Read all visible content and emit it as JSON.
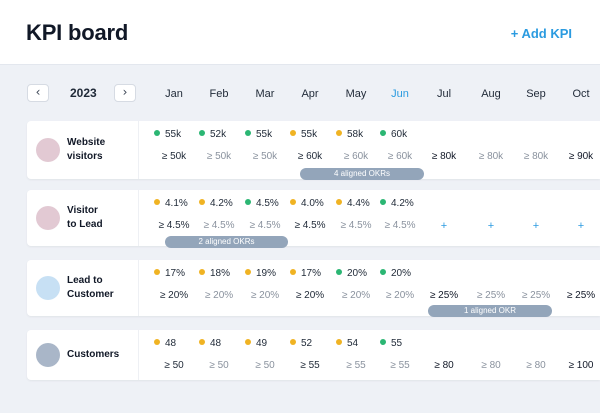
{
  "header": {
    "title": "KPI board",
    "add_label": "+ Add KPI"
  },
  "calendar": {
    "year": "2023",
    "prev_icon": "chevron-left-icon",
    "next_icon": "chevron-right-icon",
    "prev_glyph": "‹",
    "next_glyph": "›",
    "months": [
      "Jan",
      "Feb",
      "Mar",
      "Apr",
      "May",
      "Jun",
      "Jul",
      "Aug",
      "Sep",
      "Oct"
    ],
    "current_month": "Jun"
  },
  "colors": {
    "green": "#2bb673",
    "amber": "#f0b323",
    "accent": "#2b9be0"
  },
  "kpis": [
    {
      "name_line1": "Website",
      "name_line2": "visitors",
      "avatar_color": "#e2c9d3",
      "actuals": [
        {
          "value": "55k",
          "status": "green"
        },
        {
          "value": "52k",
          "status": "green"
        },
        {
          "value": "55k",
          "status": "green"
        },
        {
          "value": "55k",
          "status": "amber"
        },
        {
          "value": "58k",
          "status": "amber"
        },
        {
          "value": "60k",
          "status": "green"
        }
      ],
      "targets": [
        "≥ 50k",
        "≥ 50k",
        "≥ 50k",
        "≥ 60k",
        "≥ 60k",
        "≥ 60k",
        "≥ 80k",
        "≥ 80k",
        "≥ 80k",
        "≥ 90k"
      ],
      "okr_label": "4 aligned OKRs"
    },
    {
      "name_line1": "Visitor",
      "name_line2": "to Lead",
      "avatar_color": "#e2c9d3",
      "actuals": [
        {
          "value": "4.1%",
          "status": "amber"
        },
        {
          "value": "4.2%",
          "status": "amber"
        },
        {
          "value": "4.5%",
          "status": "green"
        },
        {
          "value": "4.0%",
          "status": "amber"
        },
        {
          "value": "4.4%",
          "status": "amber"
        },
        {
          "value": "4.2%",
          "status": "green"
        }
      ],
      "targets": [
        "≥ 4.5%",
        "≥ 4.5%",
        "≥ 4.5%",
        "≥ 4.5%",
        "≥ 4.5%",
        "≥ 4.5%"
      ],
      "plus_glyph": "+",
      "okr_label": "2 aligned OKRs"
    },
    {
      "name_line1": "Lead to",
      "name_line2": "Customer",
      "avatar_color": "#c7e0f4",
      "actuals": [
        {
          "value": "17%",
          "status": "amber"
        },
        {
          "value": "18%",
          "status": "amber"
        },
        {
          "value": "19%",
          "status": "amber"
        },
        {
          "value": "17%",
          "status": "amber"
        },
        {
          "value": "20%",
          "status": "green"
        },
        {
          "value": "20%",
          "status": "green"
        }
      ],
      "targets": [
        "≥ 20%",
        "≥ 20%",
        "≥ 20%",
        "≥ 20%",
        "≥ 20%",
        "≥ 20%",
        "≥ 25%",
        "≥ 25%",
        "≥ 25%",
        "≥ 25%"
      ],
      "okr_label": "1 aligned OKR"
    },
    {
      "name_line1": "Customers",
      "name_line2": "",
      "avatar_color": "#a9b6c8",
      "actuals": [
        {
          "value": "48",
          "status": "amber"
        },
        {
          "value": "48",
          "status": "amber"
        },
        {
          "value": "49",
          "status": "amber"
        },
        {
          "value": "52",
          "status": "amber"
        },
        {
          "value": "54",
          "status": "amber"
        },
        {
          "value": "55",
          "status": "green"
        }
      ],
      "targets": [
        "≥ 50",
        "≥ 50",
        "≥ 50",
        "≥ 55",
        "≥ 55",
        "≥ 55",
        "≥ 80",
        "≥ 80",
        "≥ 80",
        "≥ 100"
      ]
    }
  ]
}
